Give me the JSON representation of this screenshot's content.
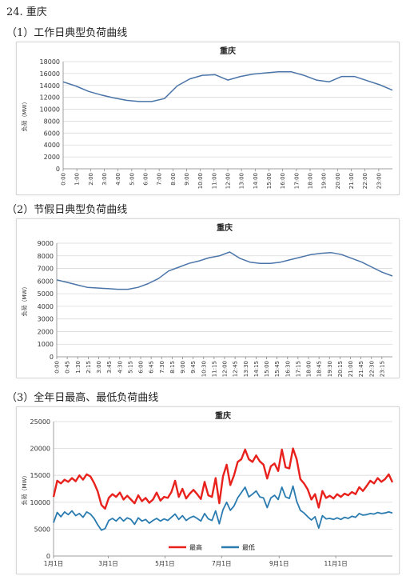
{
  "section_title": "24. 重庆",
  "headings": {
    "workday": "（1）工作日典型负荷曲线",
    "holiday": "（2）节假日典型负荷曲线",
    "annual": "（3）全年日最高、最低负荷曲线"
  },
  "chart_data": [
    {
      "id": "workday",
      "type": "line",
      "title": "重庆",
      "ylabel": "负荷（MW）",
      "xlabel": "",
      "ylim": [
        0,
        18000
      ],
      "yticks": [
        0,
        2000,
        4000,
        6000,
        8000,
        10000,
        12000,
        14000,
        16000,
        18000
      ],
      "grid": true,
      "legend": "none",
      "color": "#4a74a8",
      "x_labels": [
        "0:00",
        "1:00",
        "2:00",
        "3:00",
        "4:00",
        "5:00",
        "6:00",
        "7:00",
        "8:00",
        "9:00",
        "10:00",
        "11:00",
        "12:00",
        "13:00",
        "14:00",
        "15:00",
        "16:00",
        "17:00",
        "18:00",
        "19:00",
        "20:00",
        "21:00",
        "22:00",
        "23:00"
      ],
      "series": [
        {
          "values": [
            14600,
            13900,
            13000,
            12400,
            11900,
            11500,
            11300,
            11300,
            11800,
            13900,
            15100,
            15700,
            15800,
            14900,
            15500,
            15900,
            16100,
            16300,
            16300,
            15700,
            14900,
            14600,
            15500,
            15500,
            14800,
            14100,
            13200
          ]
        }
      ]
    },
    {
      "id": "holiday",
      "type": "line",
      "title": "重庆",
      "ylabel": "负荷（MW）",
      "xlabel": "",
      "ylim": [
        0,
        9000
      ],
      "yticks": [
        0,
        1000,
        2000,
        3000,
        4000,
        5000,
        6000,
        7000,
        8000,
        9000
      ],
      "grid": true,
      "legend": "none",
      "color": "#4a74a8",
      "x_labels": [
        "0:00",
        "0:45",
        "1:30",
        "2:15",
        "3:00",
        "3:45",
        "4:30",
        "5:15",
        "6:00",
        "6:45",
        "7:30",
        "8:15",
        "9:00",
        "9:45",
        "10:30",
        "11:15",
        "12:00",
        "12:45",
        "13:30",
        "14:15",
        "15:00",
        "15:45",
        "16:30",
        "17:15",
        "18:00",
        "18:45",
        "19:30",
        "20:15",
        "21:00",
        "21:45",
        "22:30",
        "23:15"
      ],
      "series": [
        {
          "values": [
            6100,
            5900,
            5700,
            5500,
            5450,
            5400,
            5350,
            5350,
            5500,
            5800,
            6200,
            6800,
            7100,
            7400,
            7600,
            7850,
            8000,
            8300,
            7800,
            7500,
            7400,
            7400,
            7500,
            7700,
            7900,
            8100,
            8200,
            8250,
            8100,
            7800,
            7500,
            7100,
            6700,
            6400
          ]
        }
      ]
    },
    {
      "id": "annual",
      "type": "line",
      "title": "重庆",
      "ylabel": "负荷（MW）",
      "xlabel": "",
      "ylim": [
        0,
        25000
      ],
      "yticks": [
        0,
        5000,
        10000,
        15000,
        20000,
        25000
      ],
      "grid": true,
      "legend": "bottom",
      "x_labels": [
        "1月1日",
        "3月1日",
        "5月1日",
        "7月1日",
        "9月1日",
        "11月1日"
      ],
      "x_label_days": [
        0,
        59,
        120,
        181,
        243,
        304
      ],
      "x_days": 365,
      "series": [
        {
          "name": "最高",
          "color": "#e8211c",
          "width": 2.4,
          "values": [
            11000,
            14000,
            13500,
            14200,
            13800,
            14500,
            13900,
            15000,
            14200,
            15200,
            14800,
            13600,
            12000,
            9500,
            8800,
            10800,
            11500,
            11000,
            11800,
            10500,
            11200,
            10500,
            9800,
            11300,
            10200,
            10800,
            9900,
            10500,
            11800,
            10300,
            11000,
            10800,
            11900,
            14000,
            11000,
            12500,
            10700,
            11600,
            12300,
            11500,
            10600,
            13800,
            11300,
            11000,
            14500,
            9800,
            14800,
            17000,
            13200,
            15000,
            17500,
            18000,
            19800,
            18000,
            17500,
            18700,
            17600,
            17000,
            14400,
            16700,
            17200,
            15800,
            19800,
            16500,
            16300,
            20000,
            18000,
            14300,
            13500,
            12400,
            10500,
            11500,
            9000,
            12100,
            10800,
            11200,
            10700,
            11500,
            11000,
            11600,
            11300,
            11900,
            11500,
            12800,
            12100,
            13000,
            14000,
            13500,
            14500,
            13800,
            14300,
            15200,
            13700
          ]
        },
        {
          "name": "最低",
          "color": "#2a7bb0",
          "width": 1.8,
          "values": [
            6200,
            8100,
            7300,
            8200,
            7700,
            8400,
            7500,
            7900,
            7200,
            8200,
            7800,
            7000,
            5800,
            4800,
            5100,
            6600,
            7000,
            6500,
            7200,
            6500,
            7100,
            6800,
            5900,
            7100,
            6500,
            6800,
            6100,
            6600,
            7000,
            6500,
            6900,
            6600,
            7200,
            7800,
            6800,
            7500,
            6600,
            7100,
            7400,
            7000,
            6500,
            7900,
            6900,
            6600,
            8400,
            6000,
            8600,
            10000,
            8500,
            9300,
            10800,
            11800,
            12800,
            11000,
            11500,
            12100,
            11000,
            10800,
            9000,
            10800,
            11300,
            10500,
            12800,
            11000,
            10700,
            13000,
            10200,
            8500,
            8000,
            7300,
            6700,
            7300,
            5200,
            7500,
            6900,
            7000,
            6800,
            7100,
            6800,
            7200,
            7000,
            7400,
            7200,
            7900,
            7600,
            7700,
            7900,
            7800,
            8100,
            7900,
            8000,
            8200,
            8000
          ]
        }
      ]
    }
  ]
}
